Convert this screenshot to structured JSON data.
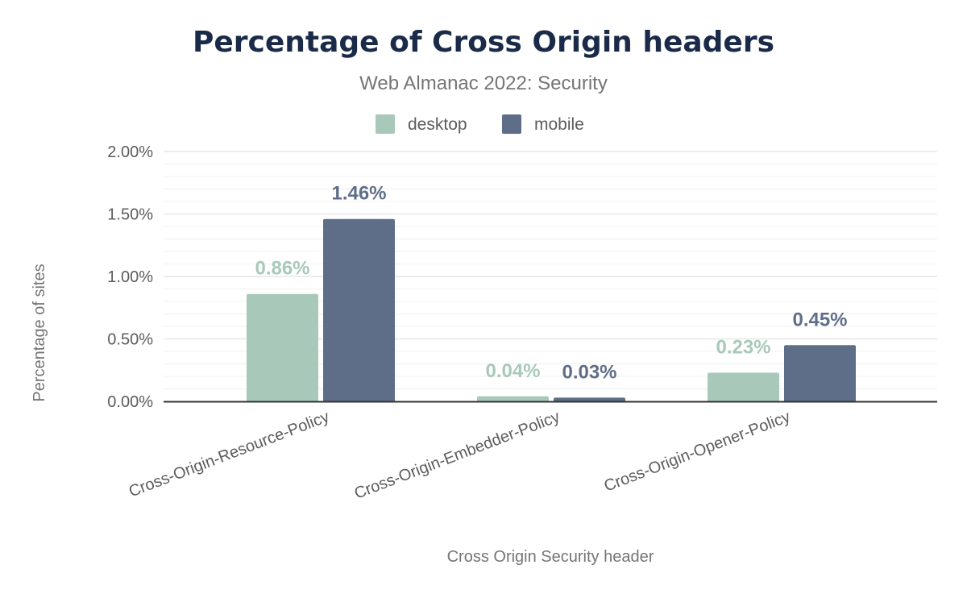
{
  "chart_data": {
    "type": "bar",
    "title": "Percentage of Cross Origin headers",
    "subtitle": "Web Almanac 2022: Security",
    "xlabel": "Cross Origin Security header",
    "ylabel": "Percentage of sites",
    "categories": [
      "Cross-Origin-Resource-Policy",
      "Cross-Origin-Embedder-Policy",
      "Cross-Origin-Opener-Policy"
    ],
    "series": [
      {
        "name": "desktop",
        "color": "#a8c9b9",
        "values": [
          0.86,
          0.04,
          0.23
        ],
        "labels": [
          "0.86%",
          "0.04%",
          "0.23%"
        ]
      },
      {
        "name": "mobile",
        "color": "#5f6e88",
        "values": [
          1.46,
          0.03,
          0.45
        ],
        "labels": [
          "1.46%",
          "0.03%",
          "0.45%"
        ]
      }
    ],
    "ylim": [
      0,
      2.0
    ],
    "yticks": [
      0,
      0.5,
      1.0,
      1.5,
      2.0
    ],
    "ytick_labels": [
      "0.00%",
      "0.50%",
      "1.00%",
      "1.50%",
      "2.00%"
    ],
    "grid": true,
    "legend_position": "top-center"
  }
}
